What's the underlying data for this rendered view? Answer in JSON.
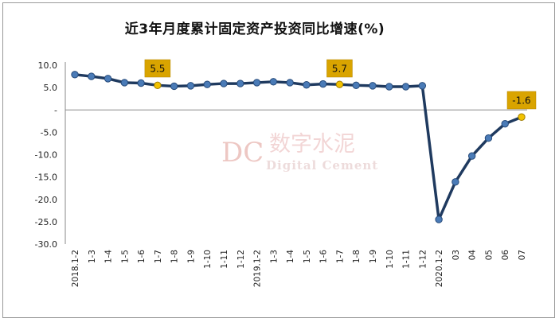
{
  "chart_data": {
    "type": "line",
    "title": "近3年月度累计固定资产投资同比增速(%)",
    "xlabel": "",
    "ylabel": "",
    "ylim": [
      -30,
      10
    ],
    "yticks": [
      "10.0",
      "5.0",
      "-",
      "-5.0",
      "-10.0",
      "-15.0",
      "-20.0",
      "-25.0",
      "-30.0"
    ],
    "ytick_values": [
      10,
      5,
      0,
      -5,
      -10,
      -15,
      -20,
      -25,
      -30
    ],
    "categories": [
      "2018.1-2",
      "1-3",
      "1-4",
      "1-5",
      "1-6",
      "1-7",
      "1-8",
      "1-9",
      "1-10",
      "1-11",
      "1-12",
      "2019.1-2",
      "1-3",
      "1-4",
      "1-5",
      "1-6",
      "1-7",
      "1-8",
      "1-9",
      "1-10",
      "1-11",
      "1-12",
      "2020.1-2",
      "03",
      "04",
      "05",
      "06",
      "07"
    ],
    "series": [
      {
        "values": [
          7.9,
          7.5,
          7.0,
          6.1,
          6.0,
          5.5,
          5.3,
          5.4,
          5.7,
          5.9,
          5.9,
          6.1,
          6.3,
          6.1,
          5.6,
          5.8,
          5.7,
          5.5,
          5.4,
          5.2,
          5.2,
          5.4,
          -24.5,
          -16.1,
          -10.3,
          -6.3,
          -3.1,
          -1.6
        ],
        "line_color": "#1f3a5f",
        "marker_color": "#4a7bb7"
      }
    ],
    "highlights": [
      {
        "index": 5,
        "label": "5.5"
      },
      {
        "index": 16,
        "label": "5.7"
      },
      {
        "index": 27,
        "label": "-1.6"
      }
    ],
    "highlight_marker_color": "#f2c200",
    "label_box_color": "#d9a400",
    "grid": false,
    "legend": "none",
    "watermark": {
      "cn": "数字水泥",
      "en": "Digital Cement",
      "logo": "DC"
    }
  }
}
